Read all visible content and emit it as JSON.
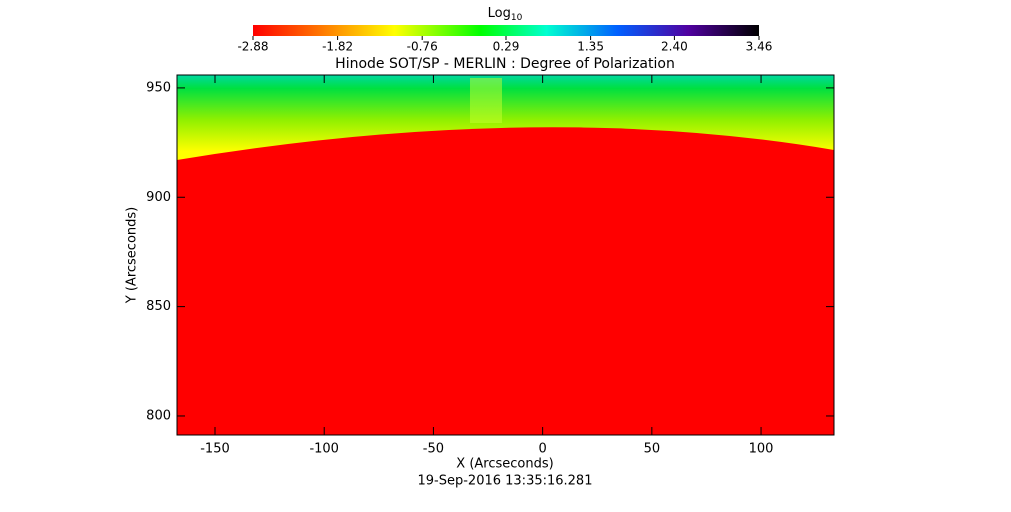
{
  "chart_data": {
    "type": "heatmap",
    "title": "Hinode SOT/SP - MERLIN : Degree of Polarization",
    "x_label": "X (Arcseconds)",
    "y_label": "Y (Arcseconds)",
    "date": "19-Sep-2016 13:35:16.281",
    "colorbar_label": "Log",
    "colorbar_label_sub": "10",
    "colorbar_lim": [
      -2.88,
      3.46
    ],
    "colorbar_ticks": [
      -2.88,
      -1.82,
      -0.76,
      0.29,
      1.35,
      {
        "value": 2.4,
        "label": "2.40"
      },
      3.46
    ],
    "xlim": [
      -167.4,
      133.4
    ],
    "xticks": [
      -150,
      -100,
      -50,
      0,
      50,
      100
    ],
    "ylim": [
      791.3,
      955.9
    ],
    "yticks": [
      800,
      850,
      900,
      950
    ]
  }
}
